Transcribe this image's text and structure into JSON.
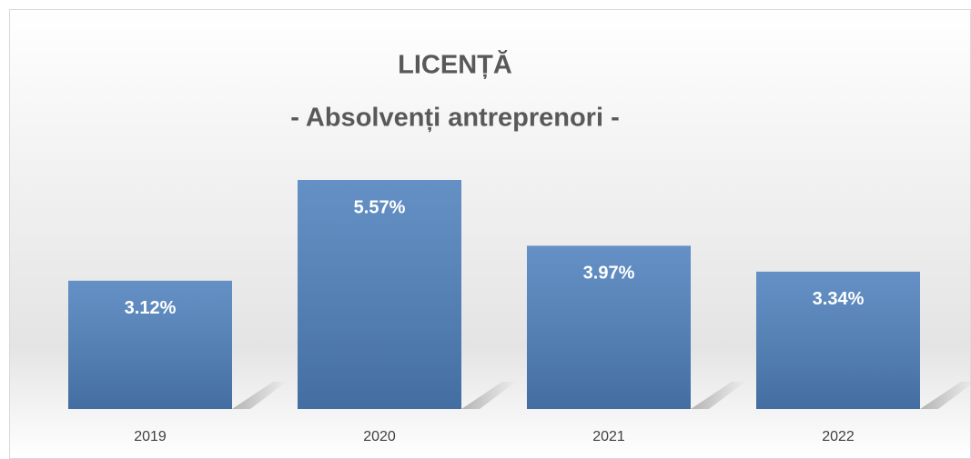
{
  "chart_data": {
    "type": "bar",
    "title": "LICENȚĂ",
    "subtitle": "- Absolvenți antreprenori -",
    "categories": [
      "2019",
      "2020",
      "2021",
      "2022"
    ],
    "values": [
      3.12,
      5.57,
      3.97,
      3.34
    ],
    "value_labels": [
      "3.12%",
      "5.57%",
      "3.97%",
      "3.34%"
    ],
    "color": "#4f81bd"
  }
}
